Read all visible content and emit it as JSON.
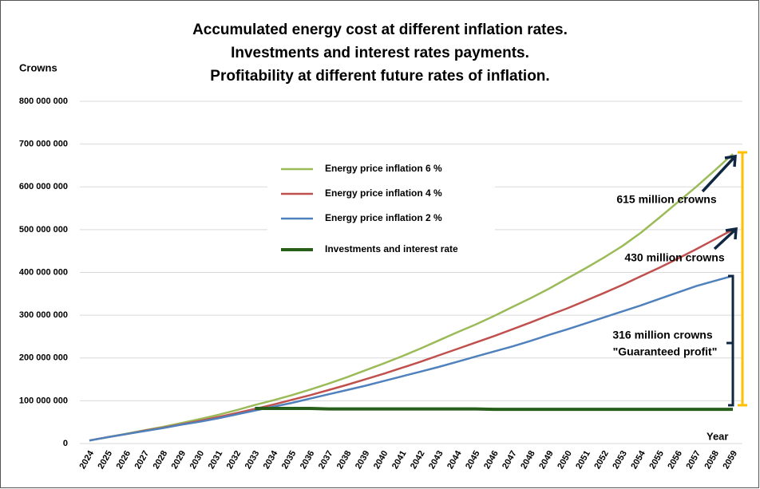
{
  "chart_data": {
    "type": "line",
    "title": [
      "Accumulated energy cost at different inflation rates.",
      "Investments and interest rates payments.",
      "Profitability at different future rates of inflation."
    ],
    "y_label": "Crowns",
    "x_label": "Year",
    "categories": [
      "2024",
      "2025",
      "2026",
      "2027",
      "2028",
      "2029",
      "2030",
      "2031",
      "2032",
      "2033",
      "2034",
      "2035",
      "2036",
      "2037",
      "2038",
      "2039",
      "2040",
      "2041",
      "2042",
      "2043",
      "2044",
      "2045",
      "2046",
      "2047",
      "2048",
      "2049",
      "2050",
      "2051",
      "2052",
      "2053",
      "2054",
      "2055",
      "2056",
      "2057",
      "2058",
      "2059"
    ],
    "series": [
      {
        "name": "Energy price inflation 6 %",
        "color": "#9bbb59",
        "width": 2.5,
        "values": [
          7000000,
          15000000,
          23000000,
          31000000,
          39000000,
          48000000,
          57000000,
          67000000,
          78000000,
          90000000,
          101000000,
          113000000,
          126000000,
          140000000,
          155000000,
          171000000,
          187000000,
          204000000,
          222000000,
          241000000,
          260000000,
          278000000,
          298000000,
          319000000,
          340000000,
          362000000,
          386000000,
          410000000,
          435000000,
          462000000,
          493000000,
          528000000,
          564000000,
          600000000,
          638000000,
          677000000
        ]
      },
      {
        "name": "Energy price inflation 4 %",
        "color": "#c0504d",
        "width": 2.5,
        "values": [
          7000000,
          15000000,
          22000000,
          30000000,
          37000000,
          45000000,
          53000000,
          62000000,
          71000000,
          81000000,
          91000000,
          102000000,
          113000000,
          125000000,
          137000000,
          150000000,
          163000000,
          177000000,
          191000000,
          206000000,
          221000000,
          236000000,
          251000000,
          267000000,
          283000000,
          300000000,
          316000000,
          334000000,
          352000000,
          371000000,
          391000000,
          411000000,
          432000000,
          454000000,
          477000000,
          500000000
        ]
      },
      {
        "name": "Energy price inflation 2 %",
        "color": "#4f81bd",
        "width": 2.5,
        "values": [
          7000000,
          15000000,
          22000000,
          29000000,
          36000000,
          44000000,
          51000000,
          59000000,
          68000000,
          77000000,
          86000000,
          95000000,
          105000000,
          115000000,
          125000000,
          135000000,
          146000000,
          157000000,
          168000000,
          179000000,
          191000000,
          203000000,
          215000000,
          227000000,
          240000000,
          254000000,
          267000000,
          281000000,
          295000000,
          309000000,
          323000000,
          338000000,
          353000000,
          368000000,
          380000000,
          392000000
        ]
      },
      {
        "name": "Investments and interest rate",
        "color": "#265e1a",
        "width": 4,
        "values": [
          null,
          null,
          null,
          null,
          null,
          null,
          null,
          null,
          null,
          82000000,
          82000000,
          82000000,
          82000000,
          81000000,
          81000000,
          81000000,
          81000000,
          81000000,
          81000000,
          81000000,
          81000000,
          81000000,
          80000000,
          80000000,
          80000000,
          80000000,
          80000000,
          80000000,
          80000000,
          80000000,
          80000000,
          80000000,
          80000000,
          80000000,
          80000000,
          80000000
        ]
      }
    ],
    "ylim": [
      0,
      800000000
    ],
    "yticks": [
      0,
      {
        "value": 100000000,
        "label": "100 000 000"
      },
      {
        "value": 200000000,
        "label": "200 000 000"
      },
      {
        "value": 300000000,
        "label": "300 000 000"
      },
      {
        "value": 400000000,
        "label": "400 000 000"
      },
      {
        "value": 500000000,
        "label": "500 000 000"
      },
      {
        "value": 600000000,
        "label": "600 000 000"
      },
      {
        "value": 700000000,
        "label": "700 000 000"
      },
      {
        "value": 800000000,
        "label": "800 000 000"
      }
    ],
    "grid": true,
    "annotations": [
      "615 million crowns",
      "430 million crowns",
      "316 million crowns",
      "\"Guaranteed profit\""
    ]
  }
}
